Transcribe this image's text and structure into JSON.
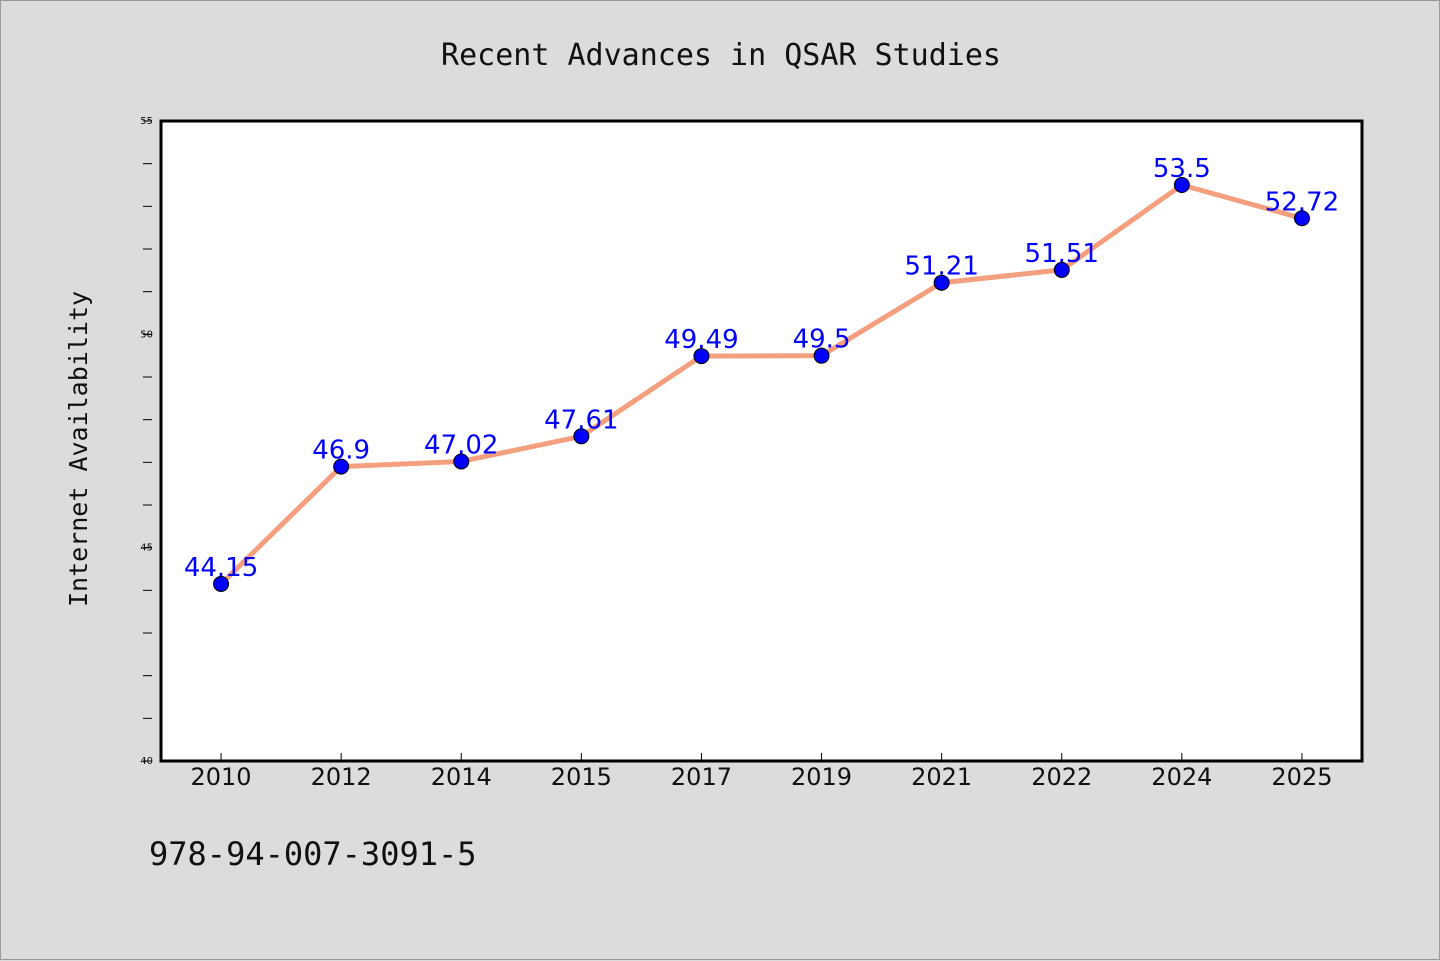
{
  "colors": {
    "background": "#dcdcdc",
    "plot_background": "#ffffff",
    "line": "#f4a07f",
    "marker": "#0000ff",
    "label": "#0000ff"
  },
  "footer_text": "978-94-007-3091-5",
  "chart_data": {
    "type": "line",
    "title": "Recent Advances in QSAR Studies",
    "xlabel": "",
    "ylabel": "Internet Availability",
    "categories": [
      "2010",
      "2012",
      "2014",
      "2015",
      "2017",
      "2019",
      "2021",
      "2022",
      "2024",
      "2025"
    ],
    "series": [
      {
        "values": [
          44.15,
          46.9,
          47.02,
          47.61,
          49.49,
          49.5,
          51.21,
          51.51,
          53.5,
          52.72
        ],
        "labels": [
          "44.15",
          "46.9",
          "47.02",
          "47.61",
          "49.49",
          "49.5",
          "51.21",
          "51.51",
          "53.5",
          "52.72"
        ]
      }
    ],
    "ylim": [
      40,
      55
    ],
    "y_ticks": [
      "40",
      "45",
      "50",
      "55"
    ],
    "grid": false,
    "legend": "none"
  }
}
